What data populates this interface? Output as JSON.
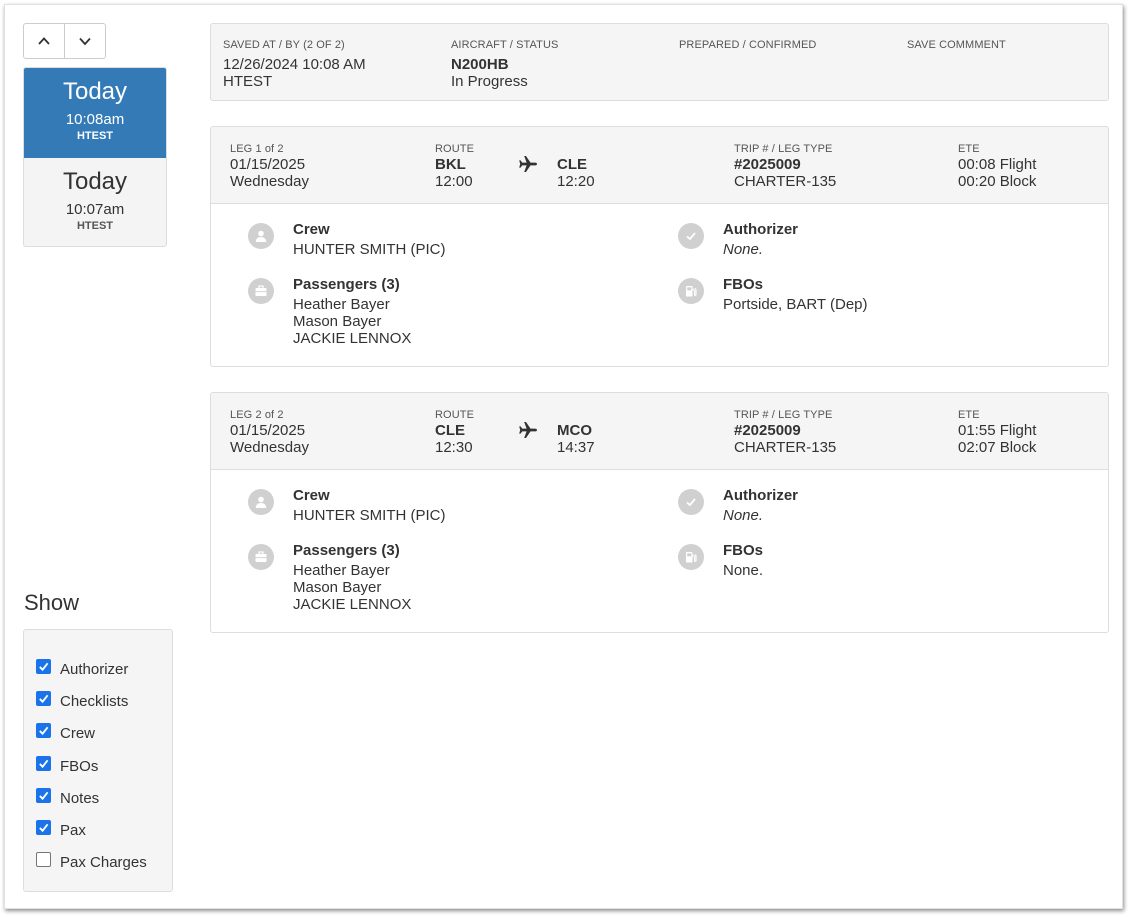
{
  "nav": {
    "up_icon": "chevron-up-icon",
    "down_icon": "chevron-down-icon"
  },
  "versions": [
    {
      "day": "Today",
      "time": "10:08am",
      "user": "HTEST",
      "active": true
    },
    {
      "day": "Today",
      "time": "10:07am",
      "user": "HTEST",
      "active": false
    }
  ],
  "show": {
    "title": "Show",
    "options": [
      {
        "label": "Authorizer",
        "checked": true
      },
      {
        "label": "Checklists",
        "checked": true
      },
      {
        "label": "Crew",
        "checked": true
      },
      {
        "label": "FBOs",
        "checked": true
      },
      {
        "label": "Notes",
        "checked": true
      },
      {
        "label": "Pax",
        "checked": true
      },
      {
        "label": "Pax Charges",
        "checked": false
      }
    ]
  },
  "save": {
    "saved_label": "SAVED AT / BY (2 of 2)",
    "saved_at": "12/26/2024 10:08 AM",
    "saved_by": "HTEST",
    "aircraft_label": "AIRCRAFT / STATUS",
    "aircraft": "N200HB",
    "status": "In Progress",
    "prepared_label": "PREPARED / CONFIRMED",
    "comment_label": "SAVE COMMMENT"
  },
  "legs": [
    {
      "leg_label": "LEG 1 of 2",
      "date": "01/15/2025",
      "weekday": "Wednesday",
      "route_label": "ROUTE",
      "from": "BKL",
      "dep_time": "12:00",
      "to": "CLE",
      "arr_time": "12:20",
      "trip_label": "TRIP # / LEG TYPE",
      "trip": "#2025009",
      "leg_type": "CHARTER-135",
      "ete_label": "ETE",
      "flight": "00:08 Flight",
      "block": "00:20 Block",
      "crew_title": "Crew",
      "crew": "HUNTER SMITH (PIC)",
      "pax_title": "Passengers (3)",
      "pax": [
        "Heather Bayer",
        "Mason Bayer",
        "JACKIE LENNOX"
      ],
      "auth_title": "Authorizer",
      "auth": "None.",
      "fbo_title": "FBOs",
      "fbo": "Portside, BART (Dep)"
    },
    {
      "leg_label": "LEG 2 of 2",
      "date": "01/15/2025",
      "weekday": "Wednesday",
      "route_label": "ROUTE",
      "from": "CLE",
      "dep_time": "12:30",
      "to": "MCO",
      "arr_time": "14:37",
      "trip_label": "TRIP # / LEG TYPE",
      "trip": "#2025009",
      "leg_type": "CHARTER-135",
      "ete_label": "ETE",
      "flight": "01:55 Flight",
      "block": "02:07 Block",
      "crew_title": "Crew",
      "crew": "HUNTER SMITH (PIC)",
      "pax_title": "Passengers (3)",
      "pax": [
        "Heather Bayer",
        "Mason Bayer",
        "JACKIE LENNOX"
      ],
      "auth_title": "Authorizer",
      "auth": "None.",
      "fbo_title": "FBOs",
      "fbo": "None."
    }
  ],
  "colors": {
    "active": "#337ab7",
    "panel": "#f5f5f5",
    "check": "#1a73e8",
    "icon_circle": "#d0d0d0"
  }
}
